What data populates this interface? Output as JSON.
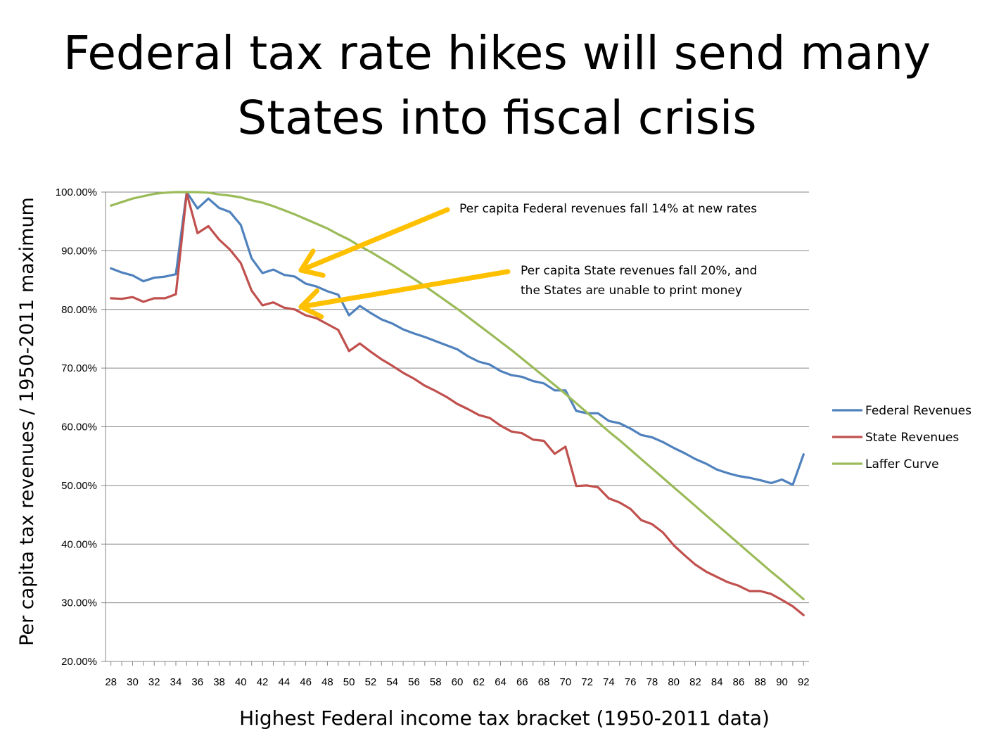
{
  "slide": {
    "title_line1": "Federal tax rate hikes will send many",
    "title_line2": "States into fiscal crisis"
  },
  "annotations": {
    "federal_note": "Per capita Federal revenues fall 14% at new rates",
    "state_note_line1": "Per capita State revenues fall 20%, and",
    "state_note_line2": "the States are unable to print money",
    "arrow_color": "#FFC000"
  },
  "chart_data": {
    "type": "line",
    "title": "",
    "xlabel": "Highest Federal income tax bracket (1950-2011 data)",
    "ylabel": "Per capita tax revenues / 1950-2011 maximum",
    "x": [
      28,
      29,
      30,
      31,
      32,
      33,
      34,
      35,
      36,
      37,
      38,
      39,
      40,
      41,
      42,
      43,
      44,
      45,
      46,
      47,
      48,
      49,
      50,
      51,
      52,
      53,
      54,
      55,
      56,
      57,
      58,
      59,
      60,
      61,
      62,
      63,
      64,
      65,
      66,
      67,
      68,
      69,
      70,
      71,
      72,
      73,
      74,
      75,
      76,
      77,
      78,
      79,
      80,
      81,
      82,
      83,
      84,
      85,
      86,
      87,
      88,
      89,
      90,
      91,
      92
    ],
    "xticks": [
      "28",
      "30",
      "32",
      "34",
      "36",
      "38",
      "40",
      "42",
      "44",
      "46",
      "48",
      "50",
      "52",
      "54",
      "56",
      "58",
      "60",
      "62",
      "64",
      "66",
      "68",
      "70",
      "72",
      "74",
      "76",
      "78",
      "80",
      "82",
      "84",
      "86",
      "88",
      "90",
      "92"
    ],
    "xlim": [
      27.5,
      92.5
    ],
    "ylim": [
      20,
      100
    ],
    "yticks": [
      "20.00%",
      "30.00%",
      "40.00%",
      "50.00%",
      "60.00%",
      "70.00%",
      "80.00%",
      "90.00%",
      "100.00%"
    ],
    "grid": "horizontal",
    "legend_position": "right",
    "series": [
      {
        "name": "Federal Revenues",
        "color": "#4F81BD",
        "values": [
          87.0,
          86.3,
          85.8,
          84.8,
          85.4,
          85.6,
          86.0,
          100.0,
          97.2,
          98.9,
          97.3,
          96.6,
          94.4,
          88.7,
          86.2,
          86.8,
          85.9,
          85.6,
          84.4,
          83.9,
          83.1,
          82.5,
          79.0,
          80.6,
          79.4,
          78.3,
          77.6,
          76.6,
          75.9,
          75.3,
          74.6,
          73.9,
          73.2,
          72.0,
          71.1,
          70.6,
          69.5,
          68.8,
          68.5,
          67.8,
          67.4,
          66.2,
          66.2,
          62.7,
          62.3,
          62.3,
          61.0,
          60.6,
          59.7,
          58.6,
          58.2,
          57.4,
          56.4,
          55.5,
          54.5,
          53.7,
          52.7,
          52.1,
          51.6,
          51.3,
          50.9,
          50.4,
          51.0,
          50.1,
          55.3
        ]
      },
      {
        "name": "State Revenues",
        "color": "#C0504D",
        "values": [
          81.9,
          81.8,
          82.1,
          81.3,
          81.9,
          81.9,
          82.6,
          99.8,
          93.0,
          94.2,
          91.9,
          90.2,
          87.9,
          83.2,
          80.7,
          81.2,
          80.3,
          80.0,
          79.0,
          78.5,
          77.5,
          76.5,
          72.9,
          74.2,
          72.8,
          71.5,
          70.4,
          69.2,
          68.2,
          67.0,
          66.1,
          65.1,
          63.9,
          63.0,
          62.0,
          61.5,
          60.2,
          59.2,
          58.9,
          57.8,
          57.6,
          55.4,
          56.6,
          49.9,
          50.0,
          49.7,
          47.8,
          47.1,
          46.0,
          44.1,
          43.4,
          42.0,
          39.8,
          38.1,
          36.5,
          35.3,
          34.4,
          33.5,
          32.9,
          32.0,
          32.0,
          31.5,
          30.5,
          29.4,
          27.9
        ]
      },
      {
        "name": "Laffer Curve",
        "color": "#9BBB59",
        "values": [
          97.7,
          98.3,
          98.9,
          99.3,
          99.7,
          99.9,
          100.0,
          100.0,
          100.0,
          99.9,
          99.6,
          99.4,
          99.1,
          98.6,
          98.2,
          97.6,
          96.9,
          96.2,
          95.4,
          94.6,
          93.8,
          92.8,
          91.9,
          90.8,
          89.8,
          88.7,
          87.6,
          86.4,
          85.2,
          84.0,
          82.7,
          81.4,
          80.1,
          78.7,
          77.3,
          75.9,
          74.5,
          73.1,
          71.6,
          70.1,
          68.6,
          67.1,
          65.6,
          64.0,
          62.4,
          60.8,
          59.2,
          57.7,
          56.1,
          54.5,
          52.9,
          51.3,
          49.7,
          48.1,
          46.5,
          44.9,
          43.3,
          41.7,
          40.1,
          38.5,
          36.9,
          35.3,
          33.8,
          32.2,
          30.6
        ]
      }
    ]
  }
}
